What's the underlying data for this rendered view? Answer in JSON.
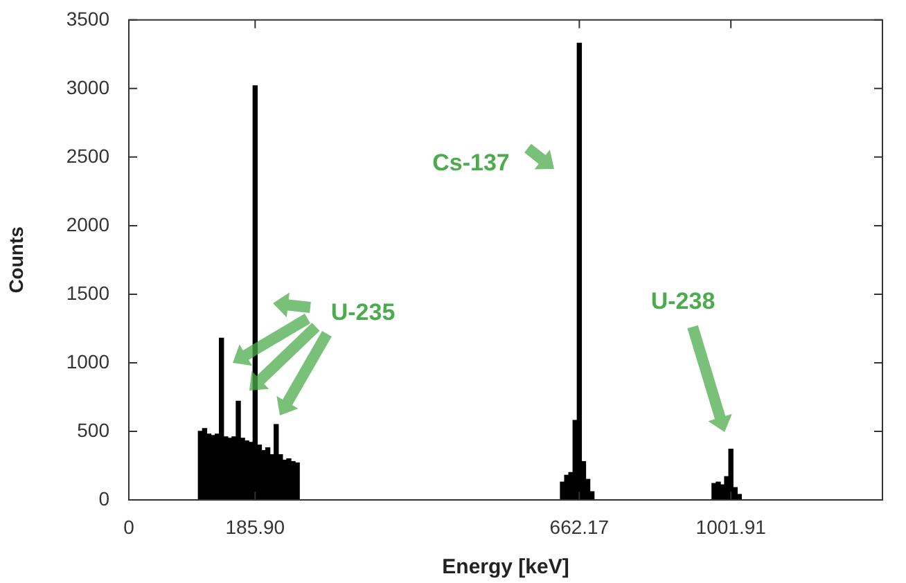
{
  "chart_data": {
    "type": "bar",
    "xlabel": "Energy [keV]",
    "ylabel": "Counts",
    "color": "#000000",
    "categories": [
      "0",
      null,
      null,
      null,
      null,
      null,
      null,
      null,
      null,
      null,
      null,
      null,
      null,
      null,
      null,
      null,
      null,
      null,
      null,
      null,
      null,
      null,
      null,
      null,
      null,
      null,
      null,
      null,
      null,
      null,
      "185.90",
      null,
      null,
      null,
      null,
      null,
      null,
      null,
      null,
      null,
      null,
      null,
      null,
      null,
      null,
      null,
      null,
      null,
      null,
      null,
      null,
      null,
      null,
      null,
      null,
      null,
      null,
      null,
      null,
      null,
      null,
      null,
      null,
      null,
      null,
      null,
      null,
      null,
      null,
      null,
      null,
      null,
      null,
      null,
      null,
      null,
      null,
      null,
      null,
      null,
      null,
      null,
      null,
      null,
      null,
      null,
      null,
      null,
      null,
      null,
      null,
      null,
      null,
      null,
      null,
      null,
      null,
      null,
      null,
      null,
      null,
      null,
      null,
      null,
      null,
      null,
      null,
      "662.17",
      null,
      null,
      null,
      null,
      null,
      null,
      null,
      null,
      null,
      null,
      null,
      null,
      null,
      null,
      null,
      null,
      null,
      null,
      null,
      null,
      null,
      null,
      null,
      null,
      null,
      null,
      null,
      null,
      null,
      null,
      null,
      null,
      null,
      null,
      null,
      "1001.91",
      null,
      null,
      null,
      null,
      null,
      null,
      null,
      null,
      null,
      null,
      null,
      null,
      null,
      null,
      null,
      null,
      null,
      null,
      null,
      null,
      null,
      null,
      null,
      null,
      null,
      null,
      null,
      null,
      null,
      null,
      null,
      null,
      null,
      null,
      null,
      null
    ],
    "values": [
      0,
      0,
      0,
      0,
      0,
      0,
      0,
      0,
      0,
      0,
      0,
      0,
      0,
      0,
      0,
      0,
      0,
      500,
      520,
      480,
      470,
      480,
      1180,
      460,
      450,
      460,
      720,
      450,
      430,
      420,
      3020,
      400,
      360,
      380,
      330,
      550,
      330,
      290,
      300,
      280,
      270,
      0,
      0,
      0,
      0,
      0,
      0,
      0,
      0,
      0,
      0,
      0,
      0,
      0,
      0,
      0,
      0,
      0,
      0,
      0,
      0,
      0,
      0,
      0,
      0,
      0,
      0,
      0,
      0,
      0,
      0,
      0,
      0,
      0,
      0,
      0,
      0,
      0,
      0,
      0,
      0,
      0,
      0,
      0,
      0,
      0,
      0,
      0,
      0,
      0,
      0,
      0,
      0,
      0,
      0,
      0,
      0,
      0,
      0,
      0,
      0,
      0,
      0,
      130,
      180,
      200,
      580,
      3330,
      280,
      150,
      60,
      0,
      0,
      0,
      0,
      0,
      0,
      0,
      0,
      0,
      0,
      0,
      0,
      0,
      0,
      0,
      0,
      0,
      0,
      0,
      0,
      0,
      0,
      0,
      0,
      0,
      0,
      0,
      0,
      120,
      130,
      110,
      170,
      370,
      90,
      40,
      0,
      0,
      0,
      0,
      0,
      0,
      0,
      0,
      0,
      0,
      0,
      0,
      0,
      0,
      0,
      0,
      0,
      0,
      0,
      0,
      0,
      0,
      0,
      0,
      0,
      0,
      0,
      0,
      0,
      0,
      0,
      0,
      0,
      0
    ],
    "ylim": [
      0,
      3500
    ],
    "yticks": [
      0,
      500,
      1000,
      1500,
      2000,
      2500,
      3000,
      3500
    ],
    "annotations": [
      "Cs-137",
      "U-235",
      "U-238"
    ]
  }
}
